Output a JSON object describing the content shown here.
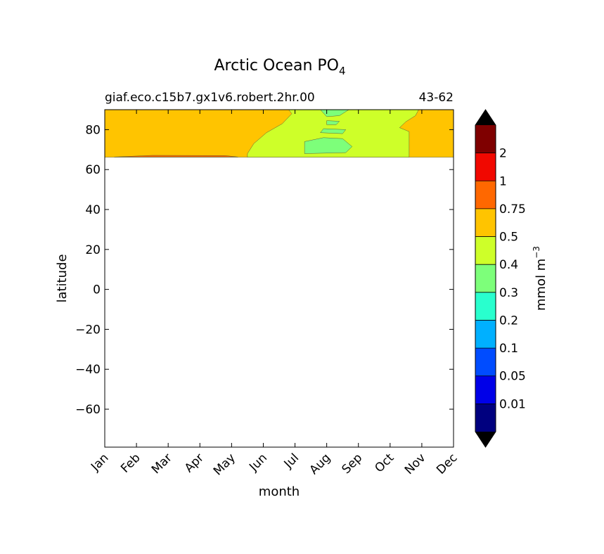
{
  "chart_data": {
    "type": "contour",
    "title": "Arctic Ocean PO",
    "title_subscript": "4",
    "subtitle_left": "giaf.eco.c15b7.gx1v6.robert.2hr.00",
    "subtitle_right": "43-62",
    "xlabel": "month",
    "ylabel": "latitude",
    "x_ticks": [
      "Jan",
      "Feb",
      "Mar",
      "Apr",
      "May",
      "Jun",
      "Jul",
      "Aug",
      "Sep",
      "Oct",
      "Nov",
      "Dec"
    ],
    "y_ticks": [
      80,
      60,
      40,
      20,
      0,
      -20,
      -40,
      -60
    ],
    "y_tick_labels": [
      "80",
      "60",
      "40",
      "20",
      "0",
      "−20",
      "−40",
      "−60"
    ],
    "ylim": [
      -79,
      90
    ],
    "xlim": [
      0,
      11
    ],
    "data_lat_range": [
      66,
      90
    ],
    "colorbar": {
      "label": "mmol m",
      "label_superscript": "−3",
      "tick_labels": [
        "0.01",
        "0.05",
        "0.1",
        "0.2",
        "0.3",
        "0.4",
        "0.5",
        "0.75",
        "1",
        "2"
      ],
      "levels": [
        0.01,
        0.05,
        0.1,
        0.2,
        0.3,
        0.4,
        0.5,
        0.75,
        1,
        2
      ],
      "colors": [
        "#00007f",
        "#0000e8",
        "#004cff",
        "#00b0ff",
        "#29ffce",
        "#7dff7a",
        "#ceff29",
        "#ffc400",
        "#ff6800",
        "#f10800",
        "#7f0000"
      ],
      "under_color": "#000000",
      "over_color": "#000000"
    },
    "regions": [
      {
        "range": "0.5-0.75",
        "color": "#ffc400",
        "boundary": [
          [
            0,
            66.2
          ],
          [
            11,
            66.2
          ],
          [
            11,
            90
          ],
          [
            0,
            90
          ]
        ]
      },
      {
        "range": "0.4-0.5",
        "color": "#ceff29",
        "boundary": [
          [
            4.5,
            66.2
          ],
          [
            9.6,
            66.2
          ],
          [
            9.6,
            79
          ],
          [
            9.3,
            81
          ],
          [
            9.5,
            84
          ],
          [
            9.8,
            87
          ],
          [
            9.9,
            90
          ],
          [
            5.8,
            90
          ],
          [
            5.9,
            88
          ],
          [
            5.6,
            83
          ],
          [
            5.1,
            78.5
          ],
          [
            4.7,
            73
          ],
          [
            4.5,
            68
          ]
        ]
      },
      {
        "range": "0.3-0.4",
        "color": "#7dff7a",
        "boundary": [
          [
            6.3,
            68
          ],
          [
            7.6,
            68.5
          ],
          [
            7.8,
            71.5
          ],
          [
            7.5,
            75.5
          ],
          [
            6.9,
            76
          ],
          [
            6.3,
            74
          ]
        ]
      },
      {
        "range": "0.3-0.4",
        "color": "#7dff7a",
        "boundary": [
          [
            6.8,
            78.5
          ],
          [
            7.5,
            78
          ],
          [
            7.6,
            80
          ],
          [
            6.9,
            80.5
          ]
        ]
      },
      {
        "range": "0.3-0.4",
        "color": "#7dff7a",
        "boundary": [
          [
            7.0,
            82.5
          ],
          [
            7.3,
            82.5
          ],
          [
            7.4,
            84.2
          ],
          [
            7.0,
            84.5
          ]
        ]
      },
      {
        "range": "0.3-0.4",
        "color": "#7dff7a",
        "boundary": [
          [
            6.8,
            90
          ],
          [
            7.7,
            90
          ],
          [
            7.4,
            87
          ],
          [
            7.0,
            86.5
          ]
        ]
      },
      {
        "range": "0.75-1",
        "color": "#ff6800",
        "boundary": [
          [
            0.3,
            66.3
          ],
          [
            4.2,
            66.3
          ],
          [
            3.8,
            67.0
          ],
          [
            1.5,
            67.1
          ]
        ]
      }
    ]
  }
}
